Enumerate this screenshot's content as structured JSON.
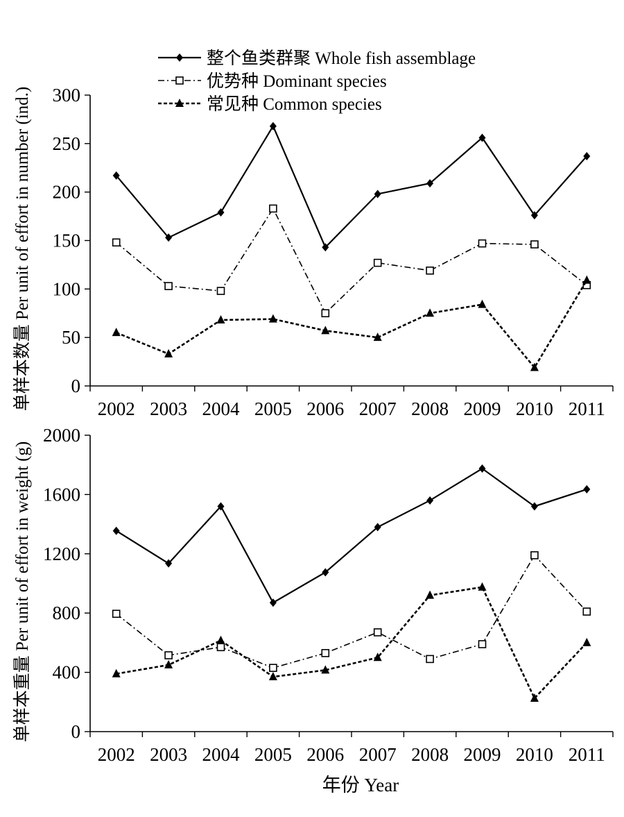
{
  "legend": {
    "items": [
      {
        "label": "整个鱼类群聚 Whole fish assemblage",
        "marker": "filled-diamond",
        "line": "solid"
      },
      {
        "label": "优势种 Dominant species",
        "marker": "open-square",
        "line": "dash-dot"
      },
      {
        "label": "常见种 Common species",
        "marker": "filled-triangle",
        "line": "dashed"
      }
    ],
    "placement": "top-center"
  },
  "x_axis_title": "年份 Year",
  "chart_data": [
    {
      "type": "line",
      "title": "",
      "ylabel": "单样本数量 Per unit of effort in number (ind.)",
      "ylim": [
        0,
        300
      ],
      "yticks": [
        0,
        50,
        100,
        150,
        200,
        250,
        300
      ],
      "grid": false,
      "categories": [
        "2002",
        "2003",
        "2004",
        "2005",
        "2006",
        "2007",
        "2008",
        "2009",
        "2010",
        "2011"
      ],
      "series": [
        {
          "name": "整个鱼类群聚 Whole fish assemblage",
          "values": [
            217,
            153,
            179,
            268,
            143,
            198,
            209,
            256,
            176,
            237
          ]
        },
        {
          "name": "优势种 Dominant species",
          "values": [
            148,
            103,
            98,
            183,
            75,
            127,
            119,
            147,
            146,
            104
          ]
        },
        {
          "name": "常见种 Common species",
          "values": [
            55,
            33,
            68,
            69,
            57,
            50,
            75,
            84,
            19,
            109
          ]
        }
      ]
    },
    {
      "type": "line",
      "title": "",
      "ylabel": "单样本重量 Per unit of effort in weight (g)",
      "xlabel": "年份 Year",
      "ylim": [
        0,
        2000
      ],
      "yticks": [
        0,
        400,
        800,
        1200,
        1600,
        2000
      ],
      "grid": false,
      "categories": [
        "2002",
        "2003",
        "2004",
        "2005",
        "2006",
        "2007",
        "2008",
        "2009",
        "2010",
        "2011"
      ],
      "series": [
        {
          "name": "整个鱼类群聚 Whole fish assemblage",
          "values": [
            1355,
            1135,
            1520,
            870,
            1075,
            1380,
            1560,
            1775,
            1520,
            1635
          ]
        },
        {
          "name": "优势种 Dominant species",
          "values": [
            795,
            515,
            570,
            430,
            530,
            670,
            490,
            590,
            1190,
            810
          ]
        },
        {
          "name": "常见种 Common species",
          "values": [
            390,
            450,
            615,
            370,
            415,
            500,
            920,
            975,
            225,
            600
          ]
        }
      ]
    }
  ]
}
